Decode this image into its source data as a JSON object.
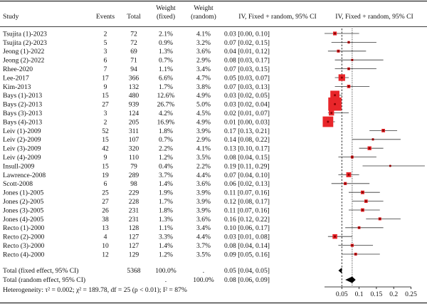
{
  "table": {
    "headers": {
      "study": "Study",
      "events": "Events",
      "total": "Total",
      "weight_fixed": [
        "Weight",
        "(fixed)"
      ],
      "weight_random": [
        "Weight",
        "(random)"
      ],
      "ci": "IV, Fixed + random, 95% CI",
      "plot": "IV, Fixed + random, 95% CI"
    },
    "summary": {
      "fixed_label": "Total (fixed effect, 95% CI)",
      "fixed_total": "5368",
      "fixed_weight_fixed": "100.0%",
      "fixed_weight_random": ".",
      "fixed_ci_text": "0.05 [0.04, 0.05]",
      "random_label": "Total (random effect, 95% CI)",
      "random_weight_fixed": ".",
      "random_weight_random": "100.0%",
      "random_ci_text": "0.08 [0.06, 0.09]",
      "heterogeneity": "Heterogeneity: τ² = 0.002; χ² = 189.78, df = 25 (p < 0.01); I² = 87%"
    }
  },
  "chart_data": {
    "type": "forest",
    "x_axis": {
      "ticks": [
        0.05,
        0.1,
        0.15,
        0.2,
        0.25
      ],
      "tick_labels": [
        "0.05",
        "0.1",
        "0.15",
        "0.2",
        "0.25"
      ],
      "xlim": [
        0.0,
        0.25
      ]
    },
    "colors": {
      "box": "#e8262a",
      "point": "#8b0000",
      "line": "#333333",
      "diamond": "#000000"
    },
    "reference_lines": {
      "fixed": 0.05,
      "random": 0.08
    },
    "pooled": {
      "fixed": {
        "est": 0.05,
        "lo": 0.04,
        "hi": 0.05
      },
      "random": {
        "est": 0.08,
        "lo": 0.06,
        "hi": 0.09
      }
    },
    "studies": [
      {
        "study": "Tsujita (1)-2023",
        "events": 2,
        "total": 72,
        "wf": "2.1%",
        "wr": "4.1%",
        "est": 0.03,
        "lo": 0.0,
        "hi": 0.1,
        "ci_text": "0.03 [0.00, 0.10]",
        "w": 2.1
      },
      {
        "study": "Tsujita (2)-2023",
        "events": 5,
        "total": 72,
        "wf": "0.9%",
        "wr": "3.2%",
        "est": 0.07,
        "lo": 0.02,
        "hi": 0.15,
        "ci_text": "0.07 [0.02, 0.15]",
        "w": 0.9
      },
      {
        "study": "Jeong (1)-2022",
        "events": 3,
        "total": 69,
        "wf": "1.3%",
        "wr": "3.6%",
        "est": 0.04,
        "lo": 0.01,
        "hi": 0.12,
        "ci_text": "0.04 [0.01, 0.12]",
        "w": 1.3
      },
      {
        "study": "Jeong (2)-2022",
        "events": 6,
        "total": 71,
        "wf": "0.7%",
        "wr": "2.9%",
        "est": 0.08,
        "lo": 0.03,
        "hi": 0.17,
        "ci_text": "0.08 [0.03, 0.17]",
        "w": 0.7
      },
      {
        "study": "Rhee-2020",
        "events": 7,
        "total": 94,
        "wf": "1.1%",
        "wr": "3.4%",
        "est": 0.07,
        "lo": 0.03,
        "hi": 0.15,
        "ci_text": "0.07 [0.03, 0.15]",
        "w": 1.1
      },
      {
        "study": "Lee-2017",
        "events": 17,
        "total": 366,
        "wf": "6.6%",
        "wr": "4.7%",
        "est": 0.05,
        "lo": 0.03,
        "hi": 0.07,
        "ci_text": "0.05 [0.03, 0.07]",
        "w": 6.6
      },
      {
        "study": "Kim-2013",
        "events": 9,
        "total": 132,
        "wf": "1.7%",
        "wr": "3.8%",
        "est": 0.07,
        "lo": 0.03,
        "hi": 0.13,
        "ci_text": "0.07 [0.03, 0.13]",
        "w": 1.7
      },
      {
        "study": "Bays (1)-2013",
        "events": 15,
        "total": 480,
        "wf": "12.6%",
        "wr": "4.9%",
        "est": 0.03,
        "lo": 0.02,
        "hi": 0.05,
        "ci_text": "0.03 [0.02, 0.05]",
        "w": 12.6
      },
      {
        "study": "Bays (2)-2013",
        "events": 27,
        "total": 939,
        "wf": "26.7%",
        "wr": "5.0%",
        "est": 0.03,
        "lo": 0.02,
        "hi": 0.04,
        "ci_text": "0.03 [0.02, 0.04]",
        "w": 26.7
      },
      {
        "study": "Bays (3)-2013",
        "events": 3,
        "total": 124,
        "wf": "4.2%",
        "wr": "4.5%",
        "est": 0.02,
        "lo": 0.01,
        "hi": 0.07,
        "ci_text": "0.02 [0.01, 0.07]",
        "w": 4.2
      },
      {
        "study": "Bays (4)-2013",
        "events": 2,
        "total": 205,
        "wf": "16.9%",
        "wr": "4.9%",
        "est": 0.01,
        "lo": 0.0,
        "hi": 0.03,
        "ci_text": "0.01 [0.00, 0.03]",
        "w": 16.9
      },
      {
        "study": "Leiv (1)-2009",
        "events": 52,
        "total": 311,
        "wf": "1.8%",
        "wr": "3.9%",
        "est": 0.17,
        "lo": 0.13,
        "hi": 0.21,
        "ci_text": "0.17 [0.13, 0.21]",
        "w": 1.8
      },
      {
        "study": "Leiv (2)-2009",
        "events": 15,
        "total": 107,
        "wf": "0.7%",
        "wr": "2.9%",
        "est": 0.14,
        "lo": 0.08,
        "hi": 0.22,
        "ci_text": "0.14 [0.08, 0.22]",
        "w": 0.7
      },
      {
        "study": "Leiv (3)-2009",
        "events": 42,
        "total": 320,
        "wf": "2.2%",
        "wr": "4.1%",
        "est": 0.13,
        "lo": 0.1,
        "hi": 0.17,
        "ci_text": "0.13 [0.10, 0.17]",
        "w": 2.2
      },
      {
        "study": "Leiv (4)-2009",
        "events": 9,
        "total": 110,
        "wf": "1.2%",
        "wr": "3.5%",
        "est": 0.08,
        "lo": 0.04,
        "hi": 0.15,
        "ci_text": "0.08 [0.04, 0.15]",
        "w": 1.2
      },
      {
        "study": "Insull-2009",
        "events": 15,
        "total": 79,
        "wf": "0.4%",
        "wr": "2.2%",
        "est": 0.19,
        "lo": 0.11,
        "hi": 0.29,
        "ci_text": "0.19 [0.11, 0.29]",
        "w": 0.4
      },
      {
        "study": "Lawrence-2008",
        "events": 19,
        "total": 289,
        "wf": "3.7%",
        "wr": "4.4%",
        "est": 0.07,
        "lo": 0.04,
        "hi": 0.1,
        "ci_text": "0.07 [0.04, 0.10]",
        "w": 3.7
      },
      {
        "study": "Scott-2008",
        "events": 6,
        "total": 98,
        "wf": "1.4%",
        "wr": "3.6%",
        "est": 0.06,
        "lo": 0.02,
        "hi": 0.13,
        "ci_text": "0.06 [0.02, 0.13]",
        "w": 1.4
      },
      {
        "study": "Jones (1)-2005",
        "events": 25,
        "total": 229,
        "wf": "1.9%",
        "wr": "3.9%",
        "est": 0.11,
        "lo": 0.07,
        "hi": 0.16,
        "ci_text": "0.11 [0.07, 0.16]",
        "w": 1.9
      },
      {
        "study": "Jones (2)-2005",
        "events": 27,
        "total": 228,
        "wf": "1.7%",
        "wr": "3.9%",
        "est": 0.12,
        "lo": 0.08,
        "hi": 0.17,
        "ci_text": "0.12 [0.08, 0.17]",
        "w": 1.7
      },
      {
        "study": "Jones (3)-2005",
        "events": 26,
        "total": 231,
        "wf": "1.8%",
        "wr": "3.9%",
        "est": 0.11,
        "lo": 0.07,
        "hi": 0.16,
        "ci_text": "0.11 [0.07, 0.16]",
        "w": 1.8
      },
      {
        "study": "Jones (4)-2005",
        "events": 38,
        "total": 231,
        "wf": "1.3%",
        "wr": "3.6%",
        "est": 0.16,
        "lo": 0.12,
        "hi": 0.22,
        "ci_text": "0.16 [0.12, 0.22]",
        "w": 1.3
      },
      {
        "study": "Recto (1)-2000",
        "events": 13,
        "total": 128,
        "wf": "1.1%",
        "wr": "3.4%",
        "est": 0.1,
        "lo": 0.06,
        "hi": 0.17,
        "ci_text": "0.10 [0.06, 0.17]",
        "w": 1.1
      },
      {
        "study": "Recto (2)-2000",
        "events": 4,
        "total": 127,
        "wf": "3.3%",
        "wr": "4.4%",
        "est": 0.03,
        "lo": 0.01,
        "hi": 0.08,
        "ci_text": "0.03 [0.01, 0.08]",
        "w": 3.3
      },
      {
        "study": "Recto (3)-2000",
        "events": 10,
        "total": 127,
        "wf": "1.4%",
        "wr": "3.7%",
        "est": 0.08,
        "lo": 0.04,
        "hi": 0.14,
        "ci_text": "0.08 [0.04, 0.14]",
        "w": 1.4
      },
      {
        "study": "Recto (4)-2000",
        "events": 12,
        "total": 129,
        "wf": "1.2%",
        "wr": "3.5%",
        "est": 0.09,
        "lo": 0.05,
        "hi": 0.16,
        "ci_text": "0.09 [0.05, 0.16]",
        "w": 1.2
      }
    ]
  }
}
